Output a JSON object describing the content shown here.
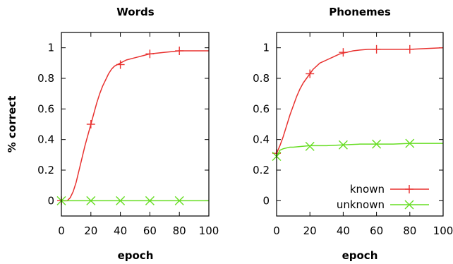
{
  "chart_data": [
    {
      "type": "line",
      "title": "Words",
      "xlabel": "epoch",
      "ylabel": "% correct",
      "xlim": [
        0,
        100
      ],
      "ylim": [
        -0.1,
        1.1
      ],
      "xticks": [
        0,
        20,
        40,
        60,
        80,
        100
      ],
      "yticks": [
        0,
        0.2,
        0.4,
        0.6,
        0.8,
        1
      ],
      "xtick_labels": [
        "0",
        "20",
        "40",
        "60",
        "80",
        "100"
      ],
      "ytick_labels": [
        "0",
        "0.2",
        "0.4",
        "0.6",
        "0.8",
        "1"
      ],
      "series": [
        {
          "color": "#e8312f",
          "marker": "plus",
          "x": [
            0,
            4,
            6,
            8,
            10,
            12,
            14,
            16,
            18,
            20,
            22,
            24,
            26,
            28,
            30,
            32,
            34,
            36,
            38,
            40,
            44,
            48,
            52,
            56,
            60,
            65,
            70,
            75,
            80,
            85,
            90,
            95,
            100
          ],
          "y": [
            0,
            0,
            0.02,
            0.06,
            0.12,
            0.2,
            0.28,
            0.36,
            0.43,
            0.5,
            0.57,
            0.64,
            0.7,
            0.75,
            0.79,
            0.83,
            0.86,
            0.88,
            0.89,
            0.9,
            0.92,
            0.93,
            0.94,
            0.95,
            0.96,
            0.965,
            0.97,
            0.975,
            0.98,
            0.98,
            0.98,
            0.98,
            0.98
          ],
          "marker_x": [
            0,
            20,
            40,
            60,
            80
          ],
          "marker_y": [
            0,
            0.5,
            0.89,
            0.96,
            0.98
          ]
        },
        {
          "color": "#66dd22",
          "marker": "x",
          "x": [
            0,
            20,
            40,
            60,
            80,
            100
          ],
          "y": [
            0,
            0,
            0,
            0,
            0,
            0
          ],
          "marker_x": [
            0,
            20,
            40,
            60,
            80
          ],
          "marker_y": [
            0,
            0,
            0,
            0,
            0
          ]
        }
      ]
    },
    {
      "type": "line",
      "title": "Phonemes",
      "xlabel": "epoch",
      "ylabel": "",
      "xlim": [
        0,
        100
      ],
      "ylim": [
        -0.1,
        1.1
      ],
      "xticks": [
        0,
        20,
        40,
        60,
        80,
        100
      ],
      "yticks": [
        0,
        0.2,
        0.4,
        0.6,
        0.8,
        1
      ],
      "xtick_labels": [
        "0",
        "20",
        "40",
        "60",
        "80",
        "100"
      ],
      "ytick_labels": [
        "0",
        "0.2",
        "0.4",
        "0.6",
        "0.8",
        "1"
      ],
      "legend": "bottom-right",
      "series": [
        {
          "name": "known",
          "color": "#e8312f",
          "marker": "plus",
          "x": [
            0,
            2,
            4,
            6,
            8,
            10,
            12,
            14,
            16,
            18,
            20,
            22,
            24,
            26,
            28,
            30,
            34,
            38,
            42,
            46,
            50,
            55,
            60,
            70,
            80,
            90,
            100
          ],
          "y": [
            0.31,
            0.36,
            0.42,
            0.49,
            0.56,
            0.62,
            0.68,
            0.73,
            0.77,
            0.8,
            0.83,
            0.86,
            0.88,
            0.9,
            0.91,
            0.92,
            0.94,
            0.96,
            0.97,
            0.98,
            0.985,
            0.99,
            0.99,
            0.99,
            0.99,
            0.995,
            1.0
          ],
          "marker_x": [
            0,
            20,
            40,
            60,
            80
          ],
          "marker_y": [
            0.31,
            0.83,
            0.97,
            0.99,
            0.99
          ]
        },
        {
          "name": "unknown",
          "color": "#66dd22",
          "marker": "x",
          "x": [
            0,
            2,
            4,
            6,
            8,
            10,
            15,
            20,
            30,
            40,
            50,
            60,
            70,
            80,
            90,
            100
          ],
          "y": [
            0.29,
            0.33,
            0.34,
            0.345,
            0.35,
            0.35,
            0.355,
            0.36,
            0.36,
            0.365,
            0.37,
            0.37,
            0.37,
            0.375,
            0.375,
            0.375
          ],
          "marker_x": [
            0,
            20,
            40,
            60,
            80
          ],
          "marker_y": [
            0.29,
            0.355,
            0.365,
            0.37,
            0.375
          ]
        }
      ]
    }
  ]
}
